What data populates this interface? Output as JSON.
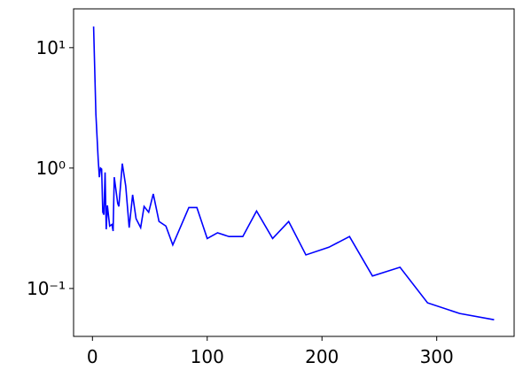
{
  "chart_data": {
    "type": "line",
    "log_y": true,
    "color": "#0000ff",
    "x": [
      1,
      3,
      5,
      6,
      7,
      8,
      9,
      10,
      11,
      12,
      13,
      15,
      17,
      18,
      19,
      22,
      23,
      26,
      29,
      32,
      35,
      38,
      42,
      45,
      49,
      53,
      58,
      64,
      70,
      84,
      91,
      100,
      109,
      119,
      131,
      143,
      157,
      171,
      186,
      206,
      224,
      244,
      268,
      292,
      320,
      350
    ],
    "values": [
      15,
      2.8,
      1.18,
      0.84,
      1.0,
      0.98,
      0.43,
      0.41,
      0.92,
      0.31,
      0.49,
      0.33,
      0.34,
      0.3,
      0.84,
      0.51,
      0.48,
      1.09,
      0.71,
      0.32,
      0.6,
      0.38,
      0.32,
      0.48,
      0.43,
      0.61,
      0.36,
      0.33,
      0.23,
      0.47,
      0.47,
      0.26,
      0.29,
      0.27,
      0.27,
      0.44,
      0.26,
      0.36,
      0.19,
      0.22,
      0.27,
      0.127,
      0.15,
      0.076,
      0.062,
      0.055
    ],
    "xlim": [
      -16.45,
      367.45
    ],
    "xticks": [
      0,
      100,
      200,
      300
    ],
    "ylim": [
      0.04,
      21
    ],
    "yticks": [
      {
        "value": 10,
        "label": "10¹"
      },
      {
        "value": 1,
        "label": "10⁰"
      },
      {
        "value": 0.1,
        "label": "10⁻¹"
      }
    ]
  }
}
